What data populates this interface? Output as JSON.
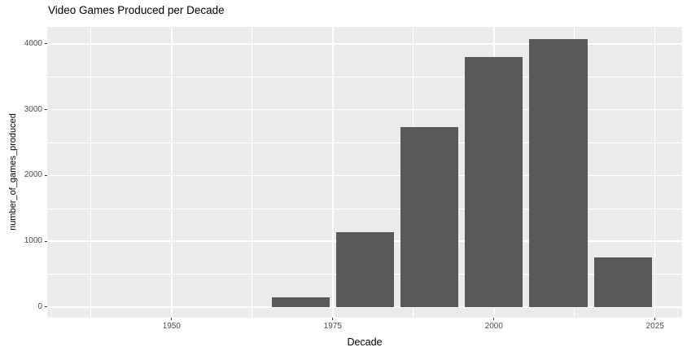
{
  "chart_data": {
    "type": "bar",
    "title": "Video Games Produced per Decade",
    "xlabel": "Decade",
    "ylabel": "number_of_games_produced",
    "categories": [
      1970,
      1980,
      1990,
      2000,
      2010,
      2020
    ],
    "values": [
      150,
      1140,
      2740,
      3800,
      4070,
      750
    ],
    "series_name": "number_of_games_produced",
    "bar_width_years": 9,
    "x_ticks": [
      "1950",
      "1975",
      "2000",
      "2025"
    ],
    "x_tick_values": [
      1950,
      1975,
      2000,
      2025
    ],
    "y_ticks": [
      "0",
      "1000",
      "2000",
      "3000",
      "4000"
    ],
    "y_tick_values": [
      0,
      1000,
      2000,
      3000,
      4000
    ],
    "x_minor_gridlines": [
      1937.5,
      1962.5,
      1987.5,
      2012.5
    ],
    "y_minor_gridlines": [
      500,
      1500,
      2500,
      3500
    ],
    "x_domain": [
      1930.7,
      2029.2
    ],
    "y_domain": [
      -161,
      4260
    ],
    "ylim": [
      0,
      4260
    ],
    "grid": true,
    "legend_position": "none",
    "colors": {
      "bar_fill": "#595959",
      "panel_background": "#EBEBEB",
      "gridline": "#FFFFFF",
      "tick_label": "#4D4D4D",
      "tick_mark": "#333333",
      "title_text": "#000000",
      "axis_title_text": "#000000",
      "page_background": "#FFFFFF"
    }
  }
}
